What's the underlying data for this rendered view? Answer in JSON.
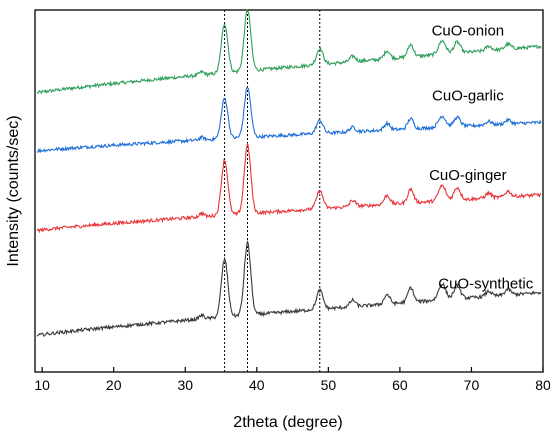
{
  "chart_data": {
    "type": "line",
    "title": "",
    "xlabel": "2theta (degree)",
    "ylabel": "Intensity (counts/sec)",
    "xlim": [
      9,
      80
    ],
    "ylim": [
      0,
      100
    ],
    "x_ticks": [
      10,
      20,
      30,
      40,
      50,
      60,
      70,
      80
    ],
    "x_tick_labels": [
      "10",
      "20",
      "30",
      "40",
      "50",
      "60",
      "70",
      "80"
    ],
    "y_ticks_shown": false,
    "grid": false,
    "legend": "none",
    "reference_lines_x": [
      35.5,
      38.7,
      48.8
    ],
    "reference_line_style": "dotted",
    "peaks": [
      {
        "x": 32.3,
        "h": 0.05,
        "w": 0.35
      },
      {
        "x": 35.5,
        "h": 0.8,
        "w": 0.45
      },
      {
        "x": 38.7,
        "h": 1.0,
        "w": 0.45
      },
      {
        "x": 48.8,
        "h": 0.26,
        "w": 0.45
      },
      {
        "x": 53.4,
        "h": 0.09,
        "w": 0.4
      },
      {
        "x": 58.2,
        "h": 0.13,
        "w": 0.4
      },
      {
        "x": 61.5,
        "h": 0.2,
        "w": 0.4
      },
      {
        "x": 65.9,
        "h": 0.22,
        "w": 0.5
      },
      {
        "x": 68.0,
        "h": 0.18,
        "w": 0.45
      },
      {
        "x": 72.4,
        "h": 0.07,
        "w": 0.4
      },
      {
        "x": 75.1,
        "h": 0.08,
        "w": 0.4
      }
    ],
    "series": [
      {
        "name": "CuO-onion",
        "color": "#2e9e5b",
        "baseline_start": 77,
        "baseline_end": 90,
        "peak_height": 17
      },
      {
        "name": "CuO-garlic",
        "color": "#1f6fd8",
        "baseline_start": 61,
        "baseline_end": 69,
        "peak_height": 14
      },
      {
        "name": "CuO-ginger",
        "color": "#e8353a",
        "baseline_start": 39,
        "baseline_end": 49,
        "peak_height": 19
      },
      {
        "name": "CuO-synthetic",
        "color": "#3a3a3a",
        "baseline_start": 10,
        "baseline_end": 22,
        "peak_height": 20
      }
    ],
    "labels": [
      {
        "text": "CuO-onion",
        "x": 69.5,
        "y": 93
      },
      {
        "text": "CuO-garlic",
        "x": 69.5,
        "y": 75
      },
      {
        "text": "CuO-ginger",
        "x": 69.5,
        "y": 53
      },
      {
        "text": "CuO-synthetic",
        "x": 72.0,
        "y": 23
      }
    ]
  }
}
